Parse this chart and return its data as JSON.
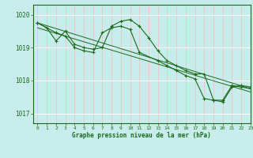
{
  "title": "Graphe pression niveau de la mer (hPa)",
  "bg_color": "#c8ecec",
  "grid_color": "#ffffff",
  "line_color": "#1a6b1a",
  "marker_color": "#1a6b1a",
  "xlim": [
    -0.5,
    23
  ],
  "ylim": [
    1016.7,
    1020.3
  ],
  "yticks": [
    1017,
    1018,
    1019,
    1020
  ],
  "xticks": [
    0,
    1,
    2,
    3,
    4,
    5,
    6,
    7,
    8,
    9,
    10,
    11,
    12,
    13,
    14,
    15,
    16,
    17,
    18,
    19,
    20,
    21,
    22,
    23
  ],
  "series1_x": [
    0,
    1,
    2,
    3,
    4,
    5,
    6,
    7,
    8,
    9,
    10,
    11,
    12,
    13,
    14,
    15,
    16,
    17,
    18,
    19,
    20,
    21,
    22,
    23
  ],
  "series1_y": [
    1019.75,
    1019.6,
    1019.2,
    1019.5,
    1019.1,
    1019.0,
    1018.95,
    1019.0,
    1019.65,
    1019.8,
    1019.85,
    1019.65,
    1019.3,
    1018.9,
    1018.6,
    1018.45,
    1018.3,
    1018.2,
    1018.2,
    1017.4,
    1017.35,
    1017.8,
    1017.85,
    1017.8
  ],
  "series2_x": [
    0,
    2,
    3,
    4,
    5,
    6,
    7,
    8,
    9,
    10,
    11,
    13,
    14,
    15,
    16,
    17,
    18,
    19,
    20,
    21,
    22,
    23
  ],
  "series2_y": [
    1019.75,
    1019.45,
    1019.35,
    1019.0,
    1018.9,
    1018.85,
    1019.45,
    1019.6,
    1019.65,
    1019.55,
    1018.85,
    1018.6,
    1018.45,
    1018.3,
    1018.15,
    1018.05,
    1017.45,
    1017.4,
    1017.4,
    1017.85,
    1017.8,
    1017.75
  ],
  "trend1_x": [
    0,
    23
  ],
  "trend1_y": [
    1019.75,
    1017.75
  ],
  "trend2_x": [
    0,
    23
  ],
  "trend2_y": [
    1019.6,
    1017.65
  ]
}
